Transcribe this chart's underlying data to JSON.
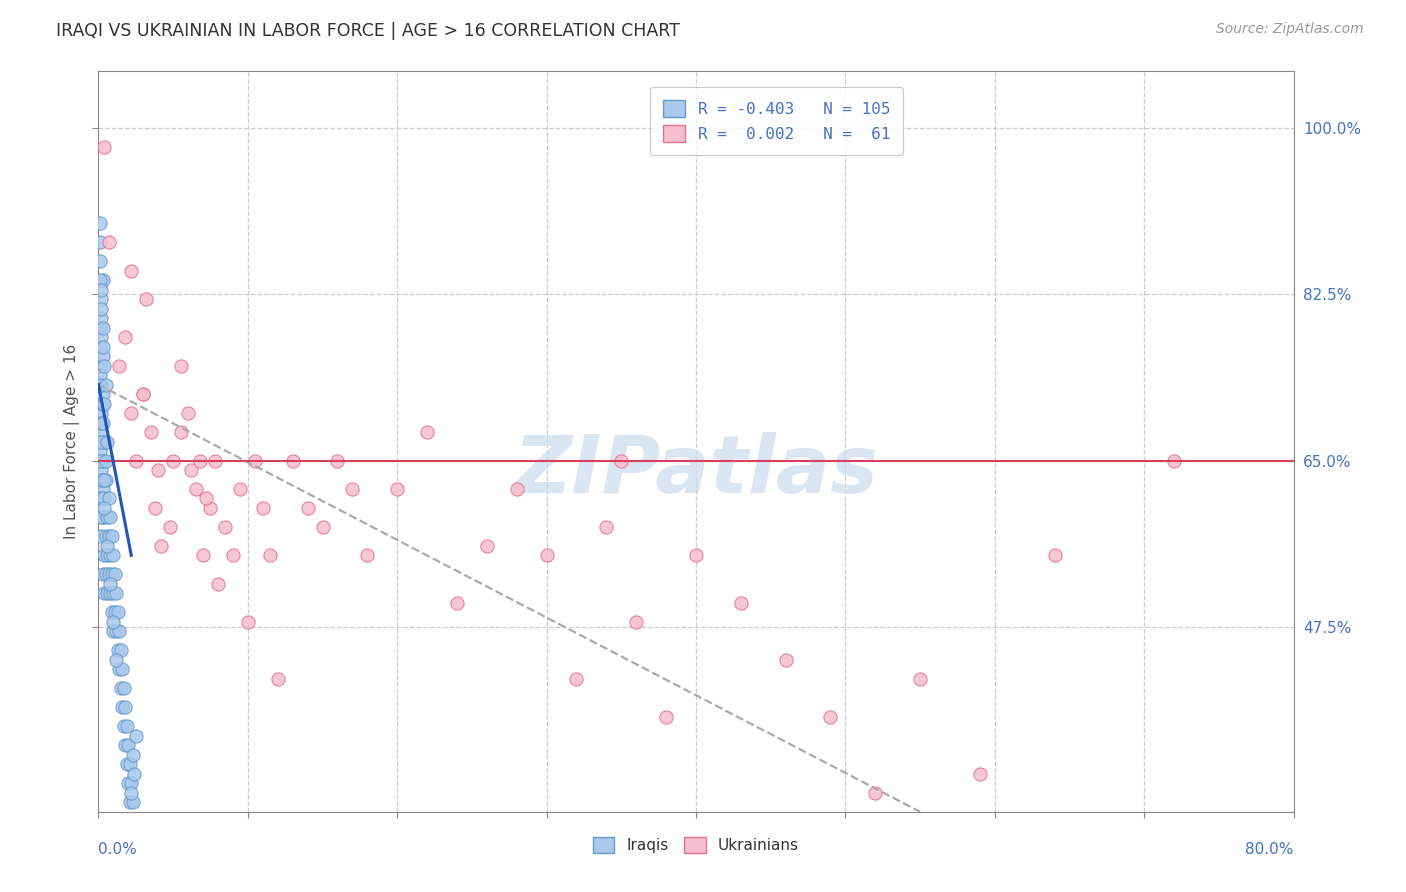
{
  "title": "IRAQI VS UKRAINIAN IN LABOR FORCE | AGE > 16 CORRELATION CHART",
  "source": "Source: ZipAtlas.com",
  "ylabel": "In Labor Force | Age > 16",
  "xlim": [
    0.0,
    0.8
  ],
  "ylim": [
    0.28,
    1.06
  ],
  "ytick_positions": [
    0.475,
    0.65,
    0.825,
    1.0
  ],
  "ytick_labels": [
    "47.5%",
    "65.0%",
    "82.5%",
    "100.0%"
  ],
  "xtick_positions": [
    0.0,
    0.1,
    0.2,
    0.3,
    0.4,
    0.5,
    0.6,
    0.7,
    0.8
  ],
  "legend_r_text": [
    "R = -0.403   N = 105",
    "R =  0.002   N =  61"
  ],
  "watermark": "ZIPatlas",
  "iraqi_color": "#aac8ec",
  "ukrainian_color": "#f5bfcd",
  "iraqi_edge": "#6699cc",
  "ukrainian_edge": "#e87090",
  "trend_iraqi_color": "#2255bb",
  "hline_y": 0.65,
  "hline_color": "#d94060",
  "background_color": "#ffffff",
  "grid_color": "#cccccc",
  "axis_color": "#888888",
  "title_color": "#333333",
  "source_color": "#999999",
  "ylabel_color": "#555555",
  "right_tick_color": "#4472c4",
  "bottom_label_color": "#4472c4",
  "legend_label_color": "#4472c4",
  "watermark_color": "#ccdcee",
  "iraqi_x": [
    0.002,
    0.001,
    0.003,
    0.001,
    0.002,
    0.001,
    0.002,
    0.001,
    0.003,
    0.002,
    0.001,
    0.002,
    0.003,
    0.001,
    0.002,
    0.001,
    0.002,
    0.003,
    0.001,
    0.002,
    0.003,
    0.001,
    0.002,
    0.003,
    0.001,
    0.002,
    0.003,
    0.004,
    0.002,
    0.001,
    0.003,
    0.002,
    0.001,
    0.004,
    0.003,
    0.002,
    0.001,
    0.003,
    0.002,
    0.005,
    0.004,
    0.003,
    0.002,
    0.001,
    0.005,
    0.004,
    0.003,
    0.006,
    0.005,
    0.004,
    0.003,
    0.002,
    0.007,
    0.006,
    0.005,
    0.004,
    0.003,
    0.008,
    0.007,
    0.006,
    0.005,
    0.004,
    0.009,
    0.008,
    0.007,
    0.006,
    0.01,
    0.009,
    0.008,
    0.011,
    0.01,
    0.009,
    0.012,
    0.011,
    0.01,
    0.013,
    0.012,
    0.014,
    0.013,
    0.015,
    0.014,
    0.016,
    0.015,
    0.017,
    0.016,
    0.018,
    0.017,
    0.019,
    0.018,
    0.02,
    0.019,
    0.021,
    0.02,
    0.022,
    0.021,
    0.023,
    0.022,
    0.024,
    0.023,
    0.025,
    0.01,
    0.012,
    0.008,
    0.006,
    0.004
  ],
  "iraqi_y": [
    0.82,
    0.79,
    0.84,
    0.77,
    0.8,
    0.75,
    0.78,
    0.73,
    0.76,
    0.71,
    0.74,
    0.69,
    0.72,
    0.67,
    0.7,
    0.65,
    0.68,
    0.63,
    0.66,
    0.64,
    0.62,
    0.84,
    0.81,
    0.79,
    0.86,
    0.83,
    0.77,
    0.75,
    0.73,
    0.88,
    0.71,
    0.69,
    0.9,
    0.67,
    0.65,
    0.63,
    0.61,
    0.59,
    0.57,
    0.73,
    0.71,
    0.69,
    0.67,
    0.65,
    0.63,
    0.61,
    0.59,
    0.67,
    0.65,
    0.63,
    0.61,
    0.59,
    0.61,
    0.59,
    0.57,
    0.55,
    0.53,
    0.59,
    0.57,
    0.55,
    0.53,
    0.51,
    0.57,
    0.55,
    0.53,
    0.51,
    0.55,
    0.53,
    0.51,
    0.53,
    0.51,
    0.49,
    0.51,
    0.49,
    0.47,
    0.49,
    0.47,
    0.47,
    0.45,
    0.45,
    0.43,
    0.43,
    0.41,
    0.41,
    0.39,
    0.39,
    0.37,
    0.37,
    0.35,
    0.35,
    0.33,
    0.33,
    0.31,
    0.31,
    0.29,
    0.29,
    0.3,
    0.32,
    0.34,
    0.36,
    0.48,
    0.44,
    0.52,
    0.56,
    0.6
  ],
  "ukrainian_x": [
    0.004,
    0.35,
    0.007,
    0.022,
    0.032,
    0.018,
    0.014,
    0.022,
    0.03,
    0.025,
    0.035,
    0.03,
    0.05,
    0.038,
    0.042,
    0.055,
    0.04,
    0.06,
    0.048,
    0.065,
    0.055,
    0.07,
    0.062,
    0.075,
    0.068,
    0.08,
    0.072,
    0.085,
    0.078,
    0.09,
    0.095,
    0.1,
    0.105,
    0.11,
    0.115,
    0.12,
    0.13,
    0.14,
    0.15,
    0.16,
    0.17,
    0.18,
    0.2,
    0.22,
    0.24,
    0.26,
    0.28,
    0.3,
    0.32,
    0.34,
    0.36,
    0.38,
    0.4,
    0.43,
    0.46,
    0.49,
    0.52,
    0.55,
    0.59,
    0.64,
    0.72
  ],
  "ukrainian_y": [
    0.98,
    0.65,
    0.88,
    0.85,
    0.82,
    0.78,
    0.75,
    0.7,
    0.72,
    0.65,
    0.68,
    0.72,
    0.65,
    0.6,
    0.56,
    0.75,
    0.64,
    0.7,
    0.58,
    0.62,
    0.68,
    0.55,
    0.64,
    0.6,
    0.65,
    0.52,
    0.61,
    0.58,
    0.65,
    0.55,
    0.62,
    0.48,
    0.65,
    0.6,
    0.55,
    0.42,
    0.65,
    0.6,
    0.58,
    0.65,
    0.62,
    0.55,
    0.62,
    0.68,
    0.5,
    0.56,
    0.62,
    0.55,
    0.42,
    0.58,
    0.48,
    0.38,
    0.55,
    0.5,
    0.44,
    0.38,
    0.3,
    0.42,
    0.32,
    0.55,
    0.65
  ],
  "iraqi_trend_x": [
    0.0,
    0.022
  ],
  "iraqi_trend_y": [
    0.73,
    0.55
  ],
  "ukrainian_trend_x": [
    0.0,
    0.55
  ],
  "ukrainian_trend_y": [
    0.73,
    0.28
  ]
}
